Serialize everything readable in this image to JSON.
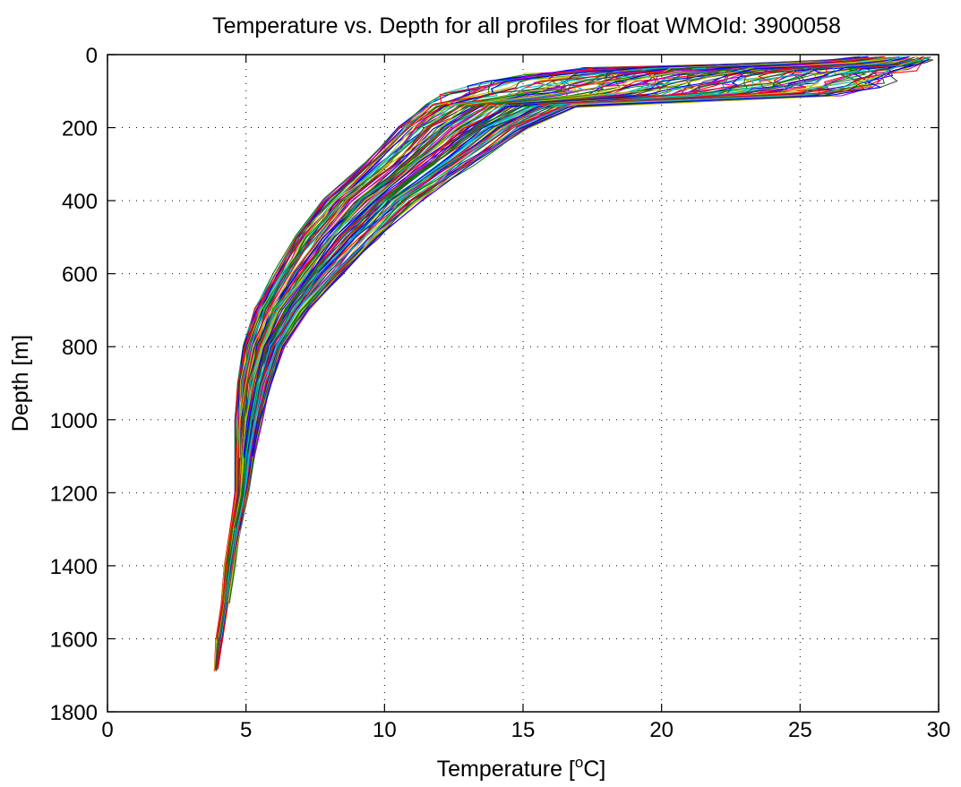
{
  "chart_data": {
    "type": "line",
    "title": "Temperature vs. Depth for all profiles for float WMOId: 3900058",
    "xlabel": "Temperature [°C]",
    "xlabel_parts": {
      "prefix": "Temperature [",
      "superscript": "o",
      "suffix": "C]"
    },
    "ylabel": "Depth [m]",
    "xlim": [
      0,
      30
    ],
    "ylim": [
      0,
      1800
    ],
    "y_inverted": true,
    "grid": true,
    "grid_style": "dotted",
    "x_ticks": [
      0,
      5,
      10,
      15,
      20,
      25,
      30
    ],
    "y_ticks": [
      0,
      200,
      400,
      600,
      800,
      1000,
      1200,
      1400,
      1600,
      1800
    ],
    "line_colors": [
      "#0000ff",
      "#008000",
      "#ff0000",
      "#00bfbf",
      "#bf00bf",
      "#bfbf00",
      "#404040"
    ],
    "profile_count": 120,
    "profile_envelope": {
      "depth": [
        5,
        25,
        40,
        55,
        75,
        90,
        110,
        140,
        200,
        300,
        400,
        500,
        600,
        700,
        800,
        900,
        1000,
        1100,
        1200,
        1300,
        1400,
        1500,
        1600,
        1685
      ],
      "temp_min": [
        27.0,
        24.0,
        17.0,
        15.0,
        13.5,
        13.0,
        12.0,
        11.5,
        10.5,
        9.3,
        7.8,
        6.8,
        6.0,
        5.3,
        4.9,
        4.7,
        4.6,
        4.6,
        4.6,
        4.4,
        4.2,
        4.1,
        3.9,
        3.85
      ],
      "temp_max": [
        29.8,
        29.6,
        29.2,
        28.8,
        28.5,
        28.0,
        26.5,
        17.0,
        15.2,
        13.2,
        11.3,
        9.8,
        8.5,
        7.3,
        6.4,
        5.9,
        5.6,
        5.3,
        5.1,
        4.8,
        4.6,
        4.4,
        4.2,
        4.0
      ]
    }
  }
}
